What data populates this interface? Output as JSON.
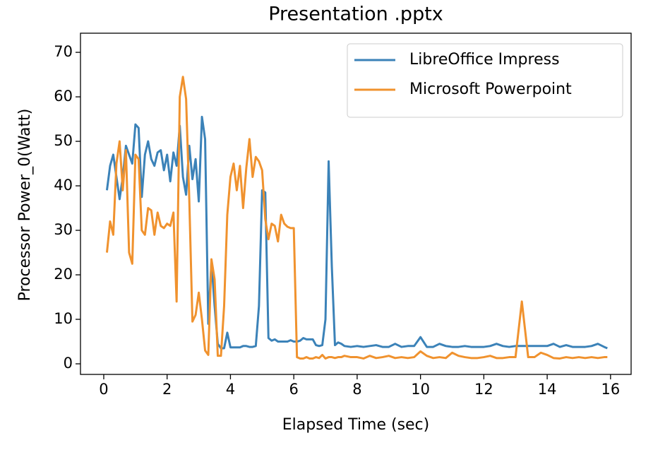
{
  "chart_data": {
    "type": "line",
    "title": "Presentation .pptx",
    "xlabel": "Elapsed Time (sec)",
    "ylabel": "Processor Power_0(Watt)",
    "x": [
      0.1,
      0.2,
      0.3,
      0.4,
      0.5,
      0.6,
      0.7,
      0.8,
      0.9,
      1.0,
      1.1,
      1.2,
      1.3,
      1.4,
      1.5,
      1.6,
      1.7,
      1.8,
      1.9,
      2.0,
      2.1,
      2.2,
      2.3,
      2.4,
      2.5,
      2.6,
      2.7,
      2.8,
      2.9,
      3.0,
      3.1,
      3.2,
      3.3,
      3.4,
      3.5,
      3.6,
      3.7,
      3.8,
      3.9,
      4.0,
      4.1,
      4.2,
      4.3,
      4.4,
      4.5,
      4.6,
      4.7,
      4.8,
      4.9,
      5.0,
      5.1,
      5.2,
      5.3,
      5.4,
      5.5,
      5.6,
      5.7,
      5.8,
      5.9,
      6.0,
      6.1,
      6.2,
      6.3,
      6.4,
      6.5,
      6.6,
      6.7,
      6.8,
      6.9,
      7.0,
      7.1,
      7.2,
      7.3,
      7.4,
      7.5,
      7.6,
      7.8,
      8.0,
      8.2,
      8.4,
      8.6,
      8.8,
      9.0,
      9.2,
      9.4,
      9.6,
      9.8,
      10.0,
      10.2,
      10.4,
      10.6,
      10.8,
      11.0,
      11.2,
      11.4,
      11.6,
      11.8,
      12.0,
      12.2,
      12.4,
      12.6,
      12.8,
      13.0,
      13.2,
      13.4,
      13.6,
      13.8,
      14.0,
      14.2,
      14.4,
      14.6,
      14.8,
      15.0,
      15.2,
      15.4,
      15.6,
      15.8,
      15.9
    ],
    "series": [
      {
        "name": "LibreOffice Impress",
        "color": "#3b82b8",
        "values": [
          39,
          44.5,
          47,
          42,
          37,
          42,
          49,
          47,
          45,
          53.8,
          53,
          37.5,
          47,
          50,
          46,
          44.5,
          47.5,
          48,
          43.5,
          47,
          41,
          47.5,
          44.5,
          53.5,
          42,
          38,
          49,
          41.5,
          46,
          36.5,
          55.5,
          50.5,
          9,
          23,
          13,
          4.5,
          3.5,
          3.5,
          7,
          3.7,
          3.7,
          3.7,
          3.7,
          4,
          4,
          3.8,
          3.8,
          4,
          13,
          39,
          38.5,
          5.8,
          5.2,
          5.5,
          5,
          5,
          5,
          5,
          5.3,
          5,
          5,
          5.2,
          5.8,
          5.5,
          5.5,
          5.5,
          4.2,
          4,
          4.2,
          10,
          45.5,
          22,
          4.2,
          4.8,
          4.5,
          4,
          3.8,
          4,
          3.8,
          4,
          4.2,
          3.8,
          3.8,
          4.5,
          3.8,
          4,
          4,
          6,
          3.8,
          3.8,
          4.5,
          4,
          3.8,
          3.8,
          4,
          3.8,
          3.8,
          3.8,
          4,
          4.5,
          4,
          3.8,
          4,
          4,
          4,
          4,
          4,
          4,
          4.5,
          3.8,
          4.2,
          3.8,
          3.8,
          3.8,
          4,
          4.5,
          3.8,
          3.5
        ]
      },
      {
        "name": "Microsoft Powerpoint",
        "color": "#f0922e",
        "values": [
          25,
          32,
          29,
          45,
          50,
          39,
          48,
          25,
          22.5,
          47,
          46,
          30,
          29,
          35,
          34.5,
          29,
          34,
          31,
          30.5,
          31.5,
          31,
          34,
          14,
          60,
          64.5,
          59.5,
          37,
          9.5,
          11,
          16,
          10,
          3,
          2,
          23.5,
          19,
          1.8,
          1.8,
          13,
          33.5,
          42,
          45,
          39,
          44.5,
          35,
          44,
          50.5,
          42,
          46.5,
          45.5,
          43.5,
          32.5,
          28,
          31.5,
          31,
          27.5,
          33.5,
          31.5,
          30.8,
          30.5,
          30.5,
          1.5,
          1.2,
          1.2,
          1.5,
          1.2,
          1.2,
          1.5,
          1.3,
          2,
          1.2,
          1.5,
          1.5,
          1.3,
          1.5,
          1.5,
          1.8,
          1.5,
          1.5,
          1.2,
          1.8,
          1.3,
          1.5,
          1.8,
          1.3,
          1.5,
          1.3,
          1.5,
          2.8,
          1.8,
          1.3,
          1.5,
          1.3,
          2.5,
          1.8,
          1.5,
          1.3,
          1.3,
          1.5,
          1.8,
          1.3,
          1.3,
          1.5,
          1.5,
          14,
          1.5,
          1.5,
          2.5,
          2,
          1.3,
          1.2,
          1.5,
          1.3,
          1.5,
          1.3,
          1.5,
          1.3,
          1.5,
          1.5
        ]
      }
    ],
    "xlim": [
      -0.735,
      16.65
    ],
    "ylim": [
      -2.38,
      74.3
    ],
    "xticks": [
      0,
      2,
      4,
      6,
      8,
      10,
      12,
      14,
      16
    ],
    "yticks": [
      0,
      10,
      20,
      30,
      40,
      50,
      60,
      70
    ],
    "legend": "upper right"
  }
}
